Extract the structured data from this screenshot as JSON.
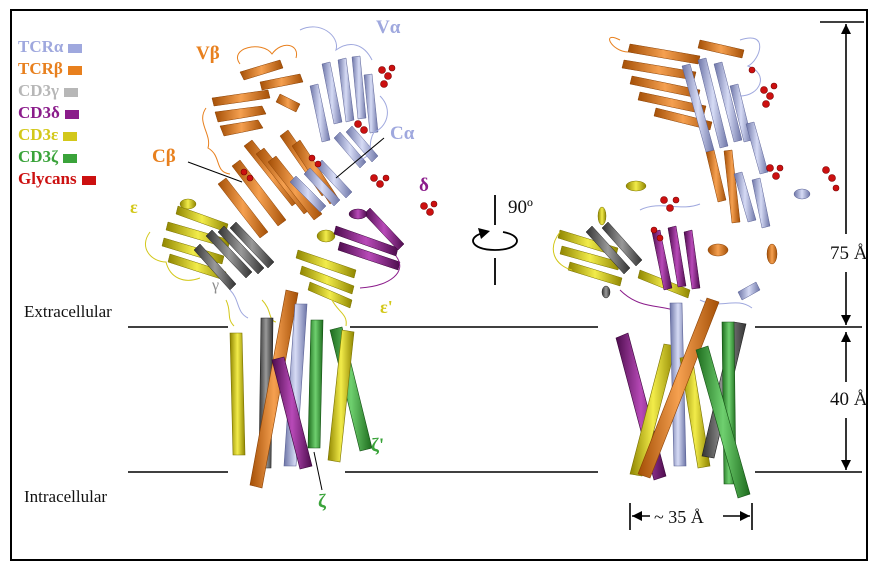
{
  "legend": [
    {
      "label": "TCRα",
      "color": "#9fa8de"
    },
    {
      "label": "TCRβ",
      "color": "#e8801e"
    },
    {
      "label": "CD3γ",
      "color": "#b7b7b7"
    },
    {
      "label": "CD3δ",
      "color": "#8b1c8b"
    },
    {
      "label": "CD3ε",
      "color": "#d3c81a"
    },
    {
      "label": "CD3ζ",
      "color": "#3aa33a"
    },
    {
      "label": "Glycans",
      "color": "#cc1010"
    }
  ],
  "domain_labels": {
    "v_beta": "Vβ",
    "v_alpha": "Vα",
    "c_alpha": "Cα",
    "c_beta": "Cβ",
    "delta": "δ",
    "epsilon": "ε",
    "epsilon_prime": "ε'",
    "gamma": "γ",
    "zeta": "ζ",
    "zeta_prime": "ζ'"
  },
  "membrane": {
    "extracellular": "Extracellular",
    "intracellular": "Intracellular"
  },
  "rotation": "90º",
  "dimensions": {
    "height_extracellular": "75 Å",
    "height_membrane": "40 Å",
    "width": "~ 35 Å"
  }
}
